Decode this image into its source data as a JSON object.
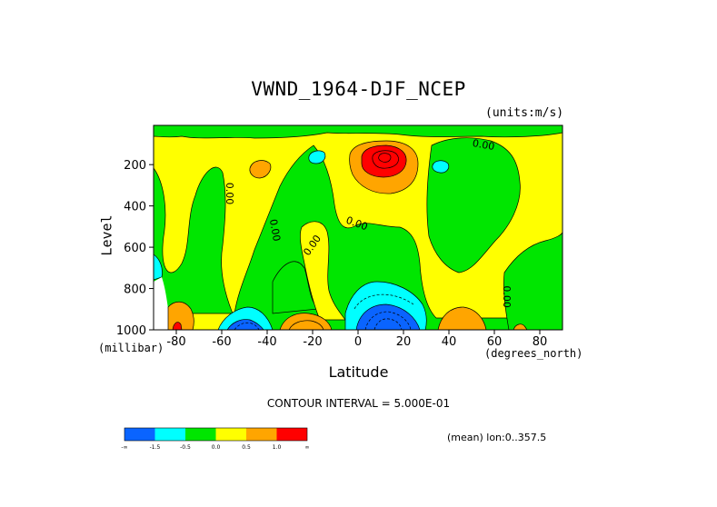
{
  "chart_data": {
    "type": "heatmap",
    "title": "VWND_1964-DJF_NCEP",
    "units_label": "(units:m/s)",
    "xlabel": "Latitude",
    "ylabel": "Level",
    "x_units": "(degrees_north)",
    "y_units": "(millibar)",
    "xlim": [
      -90,
      90
    ],
    "ylim": [
      1000,
      10
    ],
    "y_axis_reversed": true,
    "x_ticks": [
      -80,
      -60,
      -40,
      -20,
      0,
      20,
      40,
      60,
      80
    ],
    "y_ticks": [
      200,
      400,
      600,
      800,
      1000
    ],
    "contour_interval_label": "CONTOUR INTERVAL = 5.000E-01",
    "mean_label": "(mean) lon:0..357.5",
    "contour_labels": [
      {
        "text": "0.00",
        "lat": 55,
        "lev": 120
      },
      {
        "text": "0.00",
        "lat": -58,
        "lev": 340
      },
      {
        "text": "0.00",
        "lat": -38,
        "lev": 520
      },
      {
        "text": "0.00",
        "lat": -19,
        "lev": 600
      },
      {
        "text": "0.00",
        "lat": -1,
        "lev": 500
      },
      {
        "text": "0.00",
        "lat": 64,
        "lev": 840
      }
    ],
    "legend": {
      "colors": [
        "#0a64ff",
        "#00ffff",
        "#00e600",
        "#ffff00",
        "#ffa500",
        "#ff0000"
      ],
      "tick_labels": [
        "-∞",
        "-1.5",
        "-0.5",
        "0.0",
        "0.5",
        "1.0",
        "∞"
      ]
    }
  }
}
